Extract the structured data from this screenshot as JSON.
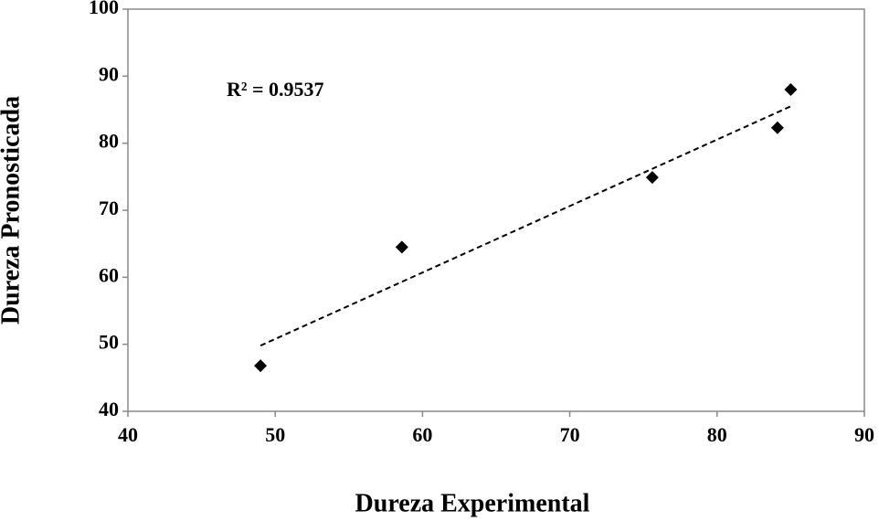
{
  "chart_data": {
    "type": "scatter",
    "xlabel": "Dureza Experimental",
    "ylabel": "Dureza Pronosticada",
    "annotation": "R² = 0.9537",
    "series": [
      {
        "color": "#000000",
        "x": [
          49.0,
          58.6,
          75.6,
          84.1,
          85.0
        ],
        "values": [
          46.8,
          64.5,
          74.9,
          82.3,
          88.0
        ]
      }
    ],
    "trendline": {
      "x": [
        49.0,
        85.0
      ],
      "values": [
        49.8,
        85.5
      ]
    },
    "xlim": [
      40,
      90
    ],
    "xticks": [
      40,
      50,
      60,
      70,
      80,
      90
    ],
    "ylim": [
      40,
      100
    ],
    "yticks": [
      40,
      50,
      60,
      70,
      80,
      90,
      100
    ],
    "grid": false
  }
}
